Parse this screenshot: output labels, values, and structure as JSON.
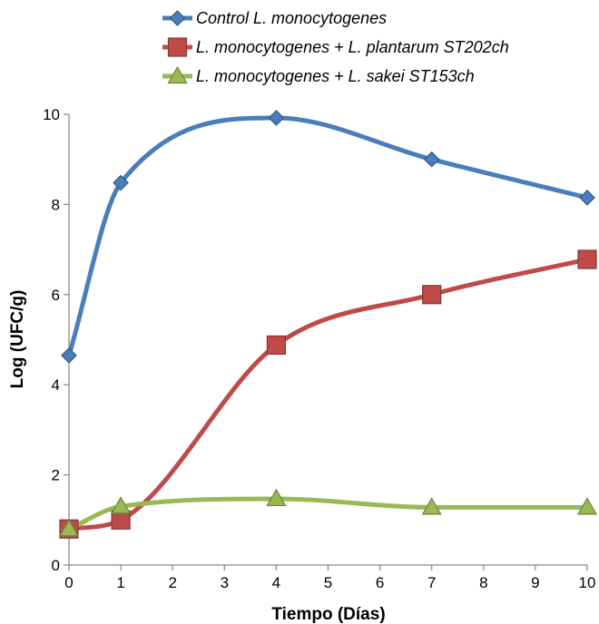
{
  "chart_data": {
    "type": "line",
    "xlabel": "Tiempo (Días)",
    "ylabel": "Log (UFC/g)",
    "xlim": [
      0,
      10
    ],
    "ylim": [
      0,
      10
    ],
    "xticks": [
      "0",
      "1",
      "2",
      "3",
      "4",
      "5",
      "6",
      "7",
      "8",
      "9",
      "10"
    ],
    "yticks": [
      "0",
      "2",
      "4",
      "6",
      "8",
      "10"
    ],
    "grid": false,
    "legend_position": "top",
    "smooth": true,
    "series": [
      {
        "name": "Control L. monocytogenes",
        "color": "#4a7ebb",
        "marker": "diamond",
        "x": [
          0,
          1,
          4,
          7,
          10
        ],
        "y": [
          4.65,
          8.48,
          9.92,
          9.0,
          8.15
        ]
      },
      {
        "name": "L. monocytogenes + L. plantarum ST202ch",
        "color": "#be4b48",
        "marker": "square",
        "x": [
          0,
          1,
          4,
          7,
          10
        ],
        "y": [
          0.8,
          1.0,
          4.88,
          6.0,
          6.78
        ]
      },
      {
        "name": "L. monocytogenes + L. sakei ST153ch",
        "color": "#98b954",
        "marker": "triangle",
        "x": [
          0,
          1,
          4,
          7,
          10
        ],
        "y": [
          0.8,
          1.3,
          1.47,
          1.28,
          1.28
        ]
      }
    ]
  }
}
